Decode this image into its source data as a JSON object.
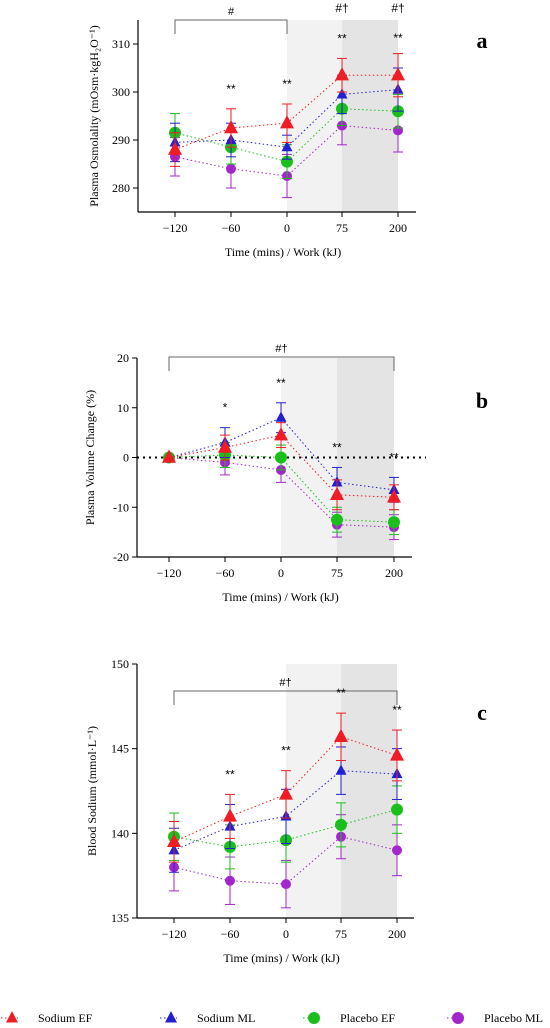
{
  "chart_data": [
    {
      "panel_label": "a",
      "type": "line",
      "xlabel": "Time (mins) / Work (kJ)",
      "ylabel": "Plasma  Osmolality (mOsm·kgH₂O⁻¹)",
      "categories": [
        "-120",
        "-60",
        "0",
        "75",
        "200"
      ],
      "x_tick_labels": [
        "−120",
        "−60",
        "0",
        "75",
        "200"
      ],
      "ylim": [
        275,
        315
      ],
      "y_ticks": [
        280,
        290,
        300,
        310
      ],
      "zero_line": false,
      "shading": [
        {
          "from": 2,
          "to": 3,
          "color": "#f2f2f2"
        },
        {
          "from": 3,
          "to": 4,
          "color": "#e4e4e4"
        }
      ],
      "series": [
        {
          "name": "Sodium EF",
          "values": [
            288.0,
            292.5,
            293.5,
            303.5,
            303.5
          ],
          "errors": [
            3.5,
            4.0,
            4.0,
            3.5,
            4.5
          ]
        },
        {
          "name": "Sodium ML",
          "values": [
            289.5,
            290.0,
            288.5,
            299.5,
            300.5
          ],
          "errors": [
            4.0,
            3.5,
            2.5,
            4.0,
            4.5
          ]
        },
        {
          "name": "Placebo EF",
          "values": [
            291.5,
            288.5,
            285.5,
            296.5,
            296.0
          ],
          "errors": [
            4.0,
            3.5,
            3.5,
            3.5,
            3.5
          ]
        },
        {
          "name": "Placebo ML",
          "values": [
            286.5,
            284.0,
            282.5,
            293.0,
            292.0
          ],
          "errors": [
            4.0,
            4.0,
            4.5,
            4.0,
            4.5
          ]
        }
      ],
      "annotations": [
        {
          "x": 1,
          "text": "**"
        },
        {
          "x": 2,
          "text": "**"
        },
        {
          "x": 3,
          "text": "#†"
        },
        {
          "x": 3,
          "text": "**"
        },
        {
          "x": 4,
          "text": "#†"
        },
        {
          "x": 4,
          "text": "**"
        }
      ],
      "bracket": {
        "from": 0,
        "to": 2,
        "label": "#"
      }
    },
    {
      "panel_label": "b",
      "type": "line",
      "xlabel": "Time (mins) / Work (kJ)",
      "ylabel": "Plasma Volume Change (%)",
      "categories": [
        "-120",
        "-60",
        "0",
        "75",
        "200"
      ],
      "x_tick_labels": [
        "−120",
        "−60",
        "0",
        "75",
        "200"
      ],
      "ylim": [
        -20,
        20
      ],
      "y_ticks": [
        -20,
        -10,
        0,
        10,
        20
      ],
      "zero_line": true,
      "shading": [
        {
          "from": 2,
          "to": 3,
          "color": "#f2f2f2"
        },
        {
          "from": 3,
          "to": 4,
          "color": "#e4e4e4"
        }
      ],
      "series": [
        {
          "name": "Sodium EF",
          "values": [
            0,
            2.0,
            4.5,
            -7.5,
            -8.0
          ],
          "errors": [
            0,
            2.5,
            2.5,
            3.0,
            2.5
          ]
        },
        {
          "name": "Sodium ML",
          "values": [
            0,
            3.0,
            8.0,
            -5.0,
            -6.5
          ],
          "errors": [
            0,
            3.0,
            3.0,
            3.0,
            2.5
          ]
        },
        {
          "name": "Placebo EF",
          "values": [
            0,
            0.5,
            0,
            -12.5,
            -13.0
          ],
          "errors": [
            0,
            2.5,
            2.5,
            2.5,
            2.5
          ]
        },
        {
          "name": "Placebo ML",
          "values": [
            0,
            -1.0,
            -2.5,
            -13.5,
            -14.0
          ],
          "errors": [
            0,
            2.5,
            2.5,
            2.5,
            2.5
          ]
        }
      ],
      "annotations": [
        {
          "x": 1,
          "text": "*"
        },
        {
          "x": 2,
          "text": "**"
        },
        {
          "x": 3,
          "text": "**"
        },
        {
          "x": 4,
          "text": "**"
        }
      ],
      "bracket": {
        "from": 0,
        "to": 4,
        "label": "#†"
      }
    },
    {
      "panel_label": "c",
      "type": "line",
      "xlabel": "Time (mins) / Work (kJ)",
      "ylabel": "Blood  Sodium (mmol·L⁻¹)",
      "categories": [
        "-120",
        "-60",
        "0",
        "75",
        "200"
      ],
      "x_tick_labels": [
        "−120",
        "−60",
        "0",
        "75",
        "200"
      ],
      "ylim": [
        135,
        150
      ],
      "y_ticks": [
        135,
        140,
        145,
        150
      ],
      "zero_line": false,
      "shading": [
        {
          "from": 2,
          "to": 3,
          "color": "#f2f2f2"
        },
        {
          "from": 3,
          "to": 4,
          "color": "#e4e4e4"
        }
      ],
      "series": [
        {
          "name": "Sodium EF",
          "values": [
            139.5,
            141.0,
            142.3,
            145.7,
            144.6
          ],
          "errors": [
            1.2,
            1.3,
            1.4,
            1.4,
            1.5
          ]
        },
        {
          "name": "Sodium ML",
          "values": [
            139.0,
            140.4,
            141.0,
            143.7,
            143.5
          ],
          "errors": [
            1.3,
            1.3,
            1.6,
            1.4,
            1.5
          ]
        },
        {
          "name": "Placebo EF",
          "values": [
            139.8,
            139.2,
            139.6,
            140.5,
            141.4
          ],
          "errors": [
            1.4,
            1.3,
            1.3,
            1.3,
            1.4
          ]
        },
        {
          "name": "Placebo ML",
          "values": [
            138.0,
            137.2,
            137.0,
            139.8,
            139.0
          ],
          "errors": [
            1.4,
            1.4,
            1.4,
            1.3,
            1.5
          ]
        }
      ],
      "annotations": [
        {
          "x": 1,
          "text": "**"
        },
        {
          "x": 2,
          "text": "**"
        },
        {
          "x": 3,
          "text": "**"
        },
        {
          "x": 4,
          "text": "**"
        }
      ],
      "bracket": {
        "from": 0,
        "to": 4,
        "label": "#†"
      }
    }
  ],
  "legend": [
    {
      "name": "Sodium EF",
      "marker": "triangle"
    },
    {
      "name": "Sodium ML",
      "marker": "triangle"
    },
    {
      "name": "Placebo EF",
      "marker": "circle"
    },
    {
      "name": "Placebo ML",
      "marker": "circle"
    }
  ],
  "colors": {
    "Sodium EF": "#ee1c24",
    "Sodium ML": "#2121cf",
    "Placebo EF": "#1bbf1b",
    "Placebo ML": "#a326cc"
  }
}
